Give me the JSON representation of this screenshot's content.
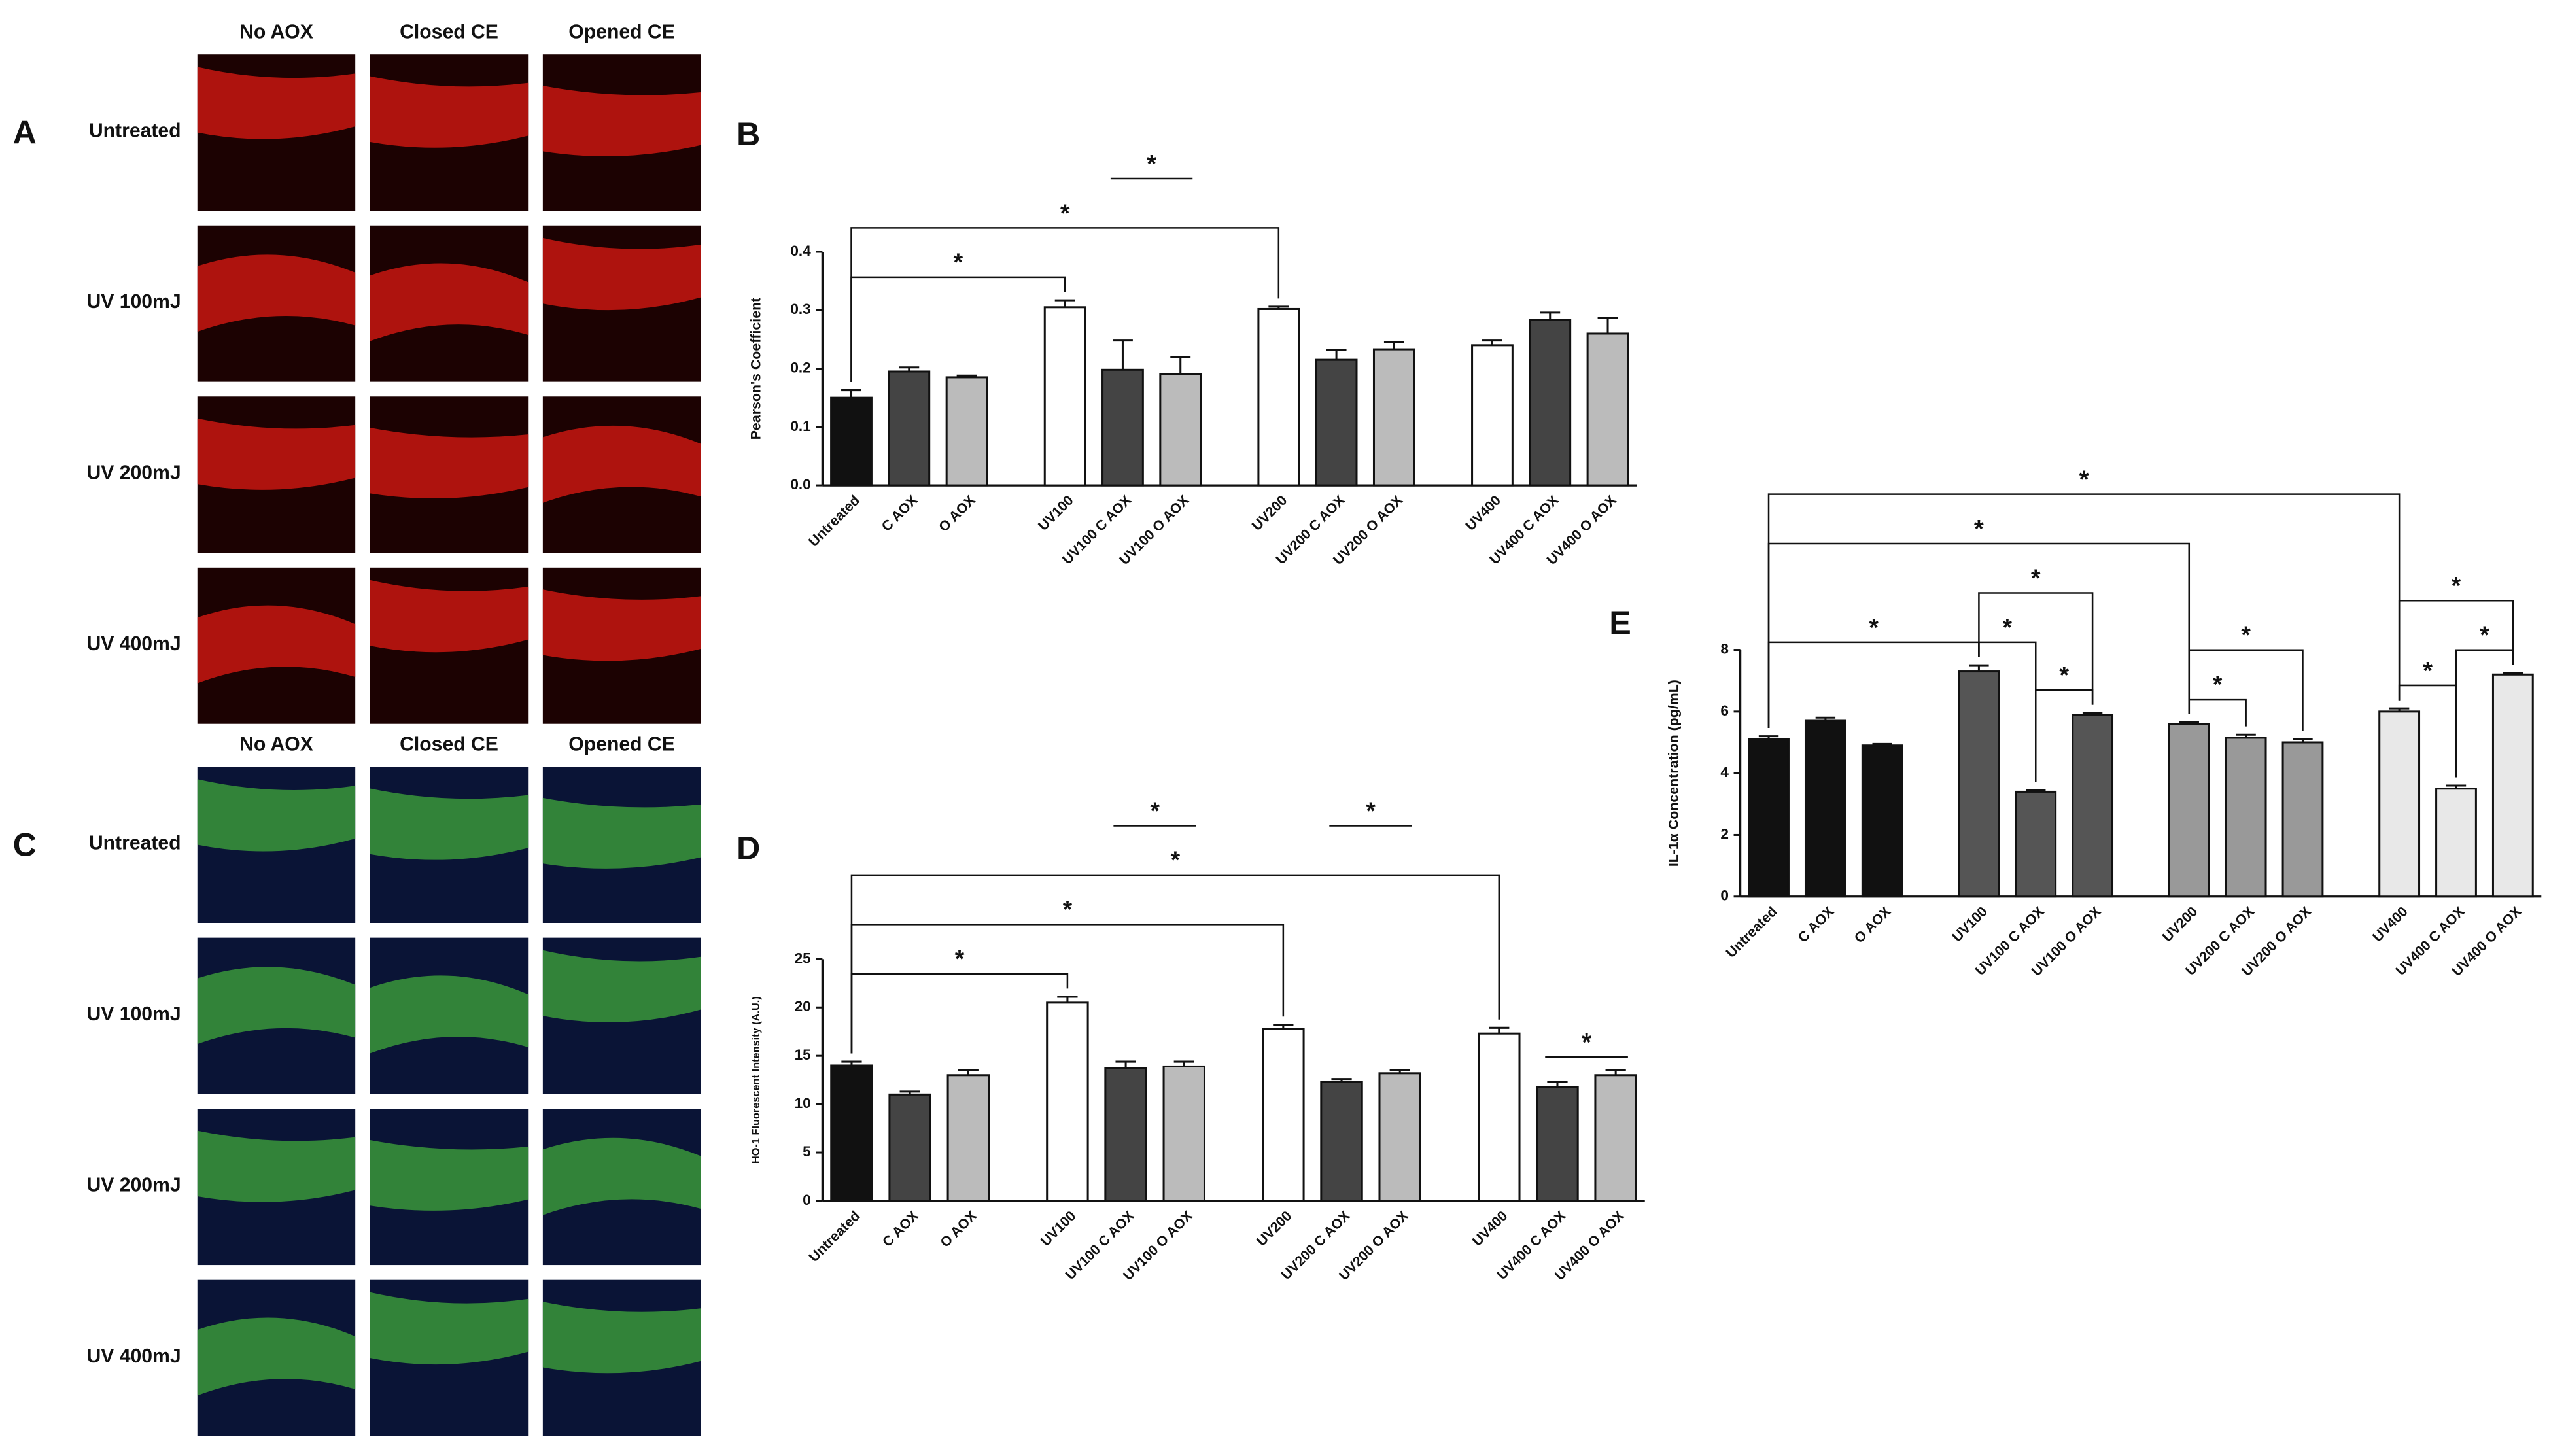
{
  "panels": [
    {
      "letter": "A",
      "stain": "red",
      "columns": [
        "No AOX",
        "Closed CE",
        "Opened CE"
      ],
      "rows": [
        "Untreated",
        "UV 100mJ",
        "UV 200mJ",
        "UV 400mJ"
      ]
    },
    {
      "letter": "C",
      "stain": "green",
      "columns": [
        "No AOX",
        "Closed CE",
        "Opened CE"
      ],
      "rows": [
        "Untreated",
        "UV 100mJ",
        "UV 200mJ",
        "UV 400mJ"
      ]
    }
  ],
  "chart_data": [
    {
      "type": "bar",
      "label": "B",
      "ylabel": "Pearson's Coefficient",
      "categories": [
        "Untreated",
        "C AOX",
        "O AOX",
        "UV100",
        "UV100 C AOX",
        "UV100 O AOX",
        "UV200",
        "UV200 C AOX",
        "UV200 O AOX",
        "UV400",
        "UV400 C AOX",
        "UV400 O AOX"
      ],
      "values": [
        0.15,
        0.195,
        0.185,
        0.305,
        0.198,
        0.19,
        0.302,
        0.215,
        0.233,
        0.24,
        0.283,
        0.26
      ],
      "errors": [
        0.013,
        0.007,
        0.003,
        0.012,
        0.05,
        0.03,
        0.004,
        0.017,
        0.012,
        0.008,
        0.013,
        0.027
      ],
      "colors": [
        "#111111",
        "#444444",
        "#bbbbbb",
        "#ffffff",
        "#444444",
        "#bbbbbb",
        "#ffffff",
        "#444444",
        "#bbbbbb",
        "#ffffff",
        "#444444",
        "#bbbbbb"
      ],
      "ylim": [
        0,
        0.4
      ],
      "yticks": [
        {
          "value": 0,
          "label": "0.0"
        },
        0.1,
        0.2,
        0.3,
        0.4
      ],
      "annotations": [
        {
          "from": "Untreated",
          "to": "UV100",
          "text": "*",
          "style": "bracket"
        },
        {
          "from": "Untreated",
          "to": "UV200",
          "text": "*",
          "style": "bracket"
        },
        {
          "from": "UV100 C AOX",
          "to": "UV100 O AOX",
          "text": "*",
          "style": "line"
        }
      ]
    },
    {
      "type": "bar",
      "label": "D",
      "ylabel": "HO-1 Fluorescent Intensity (A.U.)",
      "categories": [
        "Untreated",
        "C AOX",
        "O AOX",
        "UV100",
        "UV100 C AOX",
        "UV100 O AOX",
        "UV200",
        "UV200 C AOX",
        "UV200 O AOX",
        "UV400",
        "UV400 C AOX",
        "UV400 O AOX"
      ],
      "values": [
        14,
        11,
        13,
        20.5,
        13.7,
        13.9,
        17.8,
        12.3,
        13.2,
        17.3,
        11.8,
        13
      ],
      "errors": [
        0.4,
        0.3,
        0.5,
        0.6,
        0.7,
        0.5,
        0.4,
        0.3,
        0.3,
        0.6,
        0.5,
        0.5
      ],
      "colors": [
        "#111111",
        "#444444",
        "#bbbbbb",
        "#ffffff",
        "#444444",
        "#bbbbbb",
        "#ffffff",
        "#444444",
        "#bbbbbb",
        "#ffffff",
        "#444444",
        "#bbbbbb"
      ],
      "ylim": [
        0,
        25
      ],
      "yticks": [
        0,
        5,
        10,
        15,
        20,
        25
      ],
      "annotations": [
        {
          "from": "Untreated",
          "to": "UV100",
          "text": "*",
          "style": "bracket"
        },
        {
          "from": "Untreated",
          "to": "UV200",
          "text": "*",
          "style": "bracket"
        },
        {
          "from": "Untreated",
          "to": "UV400",
          "text": "*",
          "style": "bracket"
        },
        {
          "from": "UV100 C AOX",
          "to": "UV100 O AOX",
          "text": "*",
          "style": "line"
        },
        {
          "from": "UV200 C AOX",
          "to": "UV200 O AOX",
          "text": "*",
          "style": "line"
        },
        {
          "from": "UV400 C AOX",
          "to": "UV400 O AOX",
          "text": "*",
          "style": "line"
        }
      ]
    },
    {
      "type": "bar",
      "label": "E",
      "ylabel": "IL-1α Concentration (pg/mL)",
      "categories": [
        "Untreated",
        "C AOX",
        "O AOX",
        "UV100",
        "UV100 C AOX",
        "UV100 O AOX",
        "UV200",
        "UV200 C AOX",
        "UV200 O AOX",
        "UV400",
        "UV400 C AOX",
        "UV400 O AOX"
      ],
      "values": [
        5.1,
        5.7,
        4.9,
        7.3,
        3.4,
        5.9,
        5.6,
        5.15,
        5.0,
        6.0,
        3.5,
        7.2
      ],
      "errors": [
        0.1,
        0.1,
        0.05,
        0.2,
        0.05,
        0.05,
        0.05,
        0.1,
        0.1,
        0.1,
        0.1,
        0.05
      ],
      "colors": [
        "#111111",
        "#111111",
        "#111111",
        "#555555",
        "#555555",
        "#555555",
        "#999999",
        "#999999",
        "#999999",
        "#e8e8e8",
        "#e8e8e8",
        "#e8e8e8"
      ],
      "ylim": [
        0,
        8
      ],
      "yticks": [
        0,
        2,
        4,
        6,
        8
      ],
      "annotations": [
        {
          "from": "Untreated",
          "to": "UV100",
          "text": "*",
          "style": "bracket"
        },
        {
          "from": "UV100",
          "to": "UV100 C AOX",
          "text": "*",
          "style": "bracket"
        },
        {
          "from": "UV100 C AOX",
          "to": "UV100 O AOX",
          "text": "*",
          "style": "bracket"
        },
        {
          "from": "UV100",
          "to": "UV100 O AOX",
          "text": "*",
          "style": "bracket"
        },
        {
          "from": "UV200",
          "to": "UV200 C AOX",
          "text": "*",
          "style": "bracket"
        },
        {
          "from": "UV200",
          "to": "UV200 O AOX",
          "text": "*",
          "style": "bracket"
        },
        {
          "from": "UV400",
          "to": "UV400 C AOX",
          "text": "*",
          "style": "bracket"
        },
        {
          "from": "UV400 C AOX",
          "to": "UV400 O AOX",
          "text": "*",
          "style": "bracket"
        },
        {
          "from": "UV400",
          "to": "UV400 O AOX",
          "text": "*",
          "style": "bracket"
        },
        {
          "from": "Untreated",
          "to": "UV200",
          "text": "*",
          "style": "bracket"
        },
        {
          "from": "Untreated",
          "to": "UV400",
          "text": "*",
          "style": "bracket"
        }
      ]
    }
  ]
}
